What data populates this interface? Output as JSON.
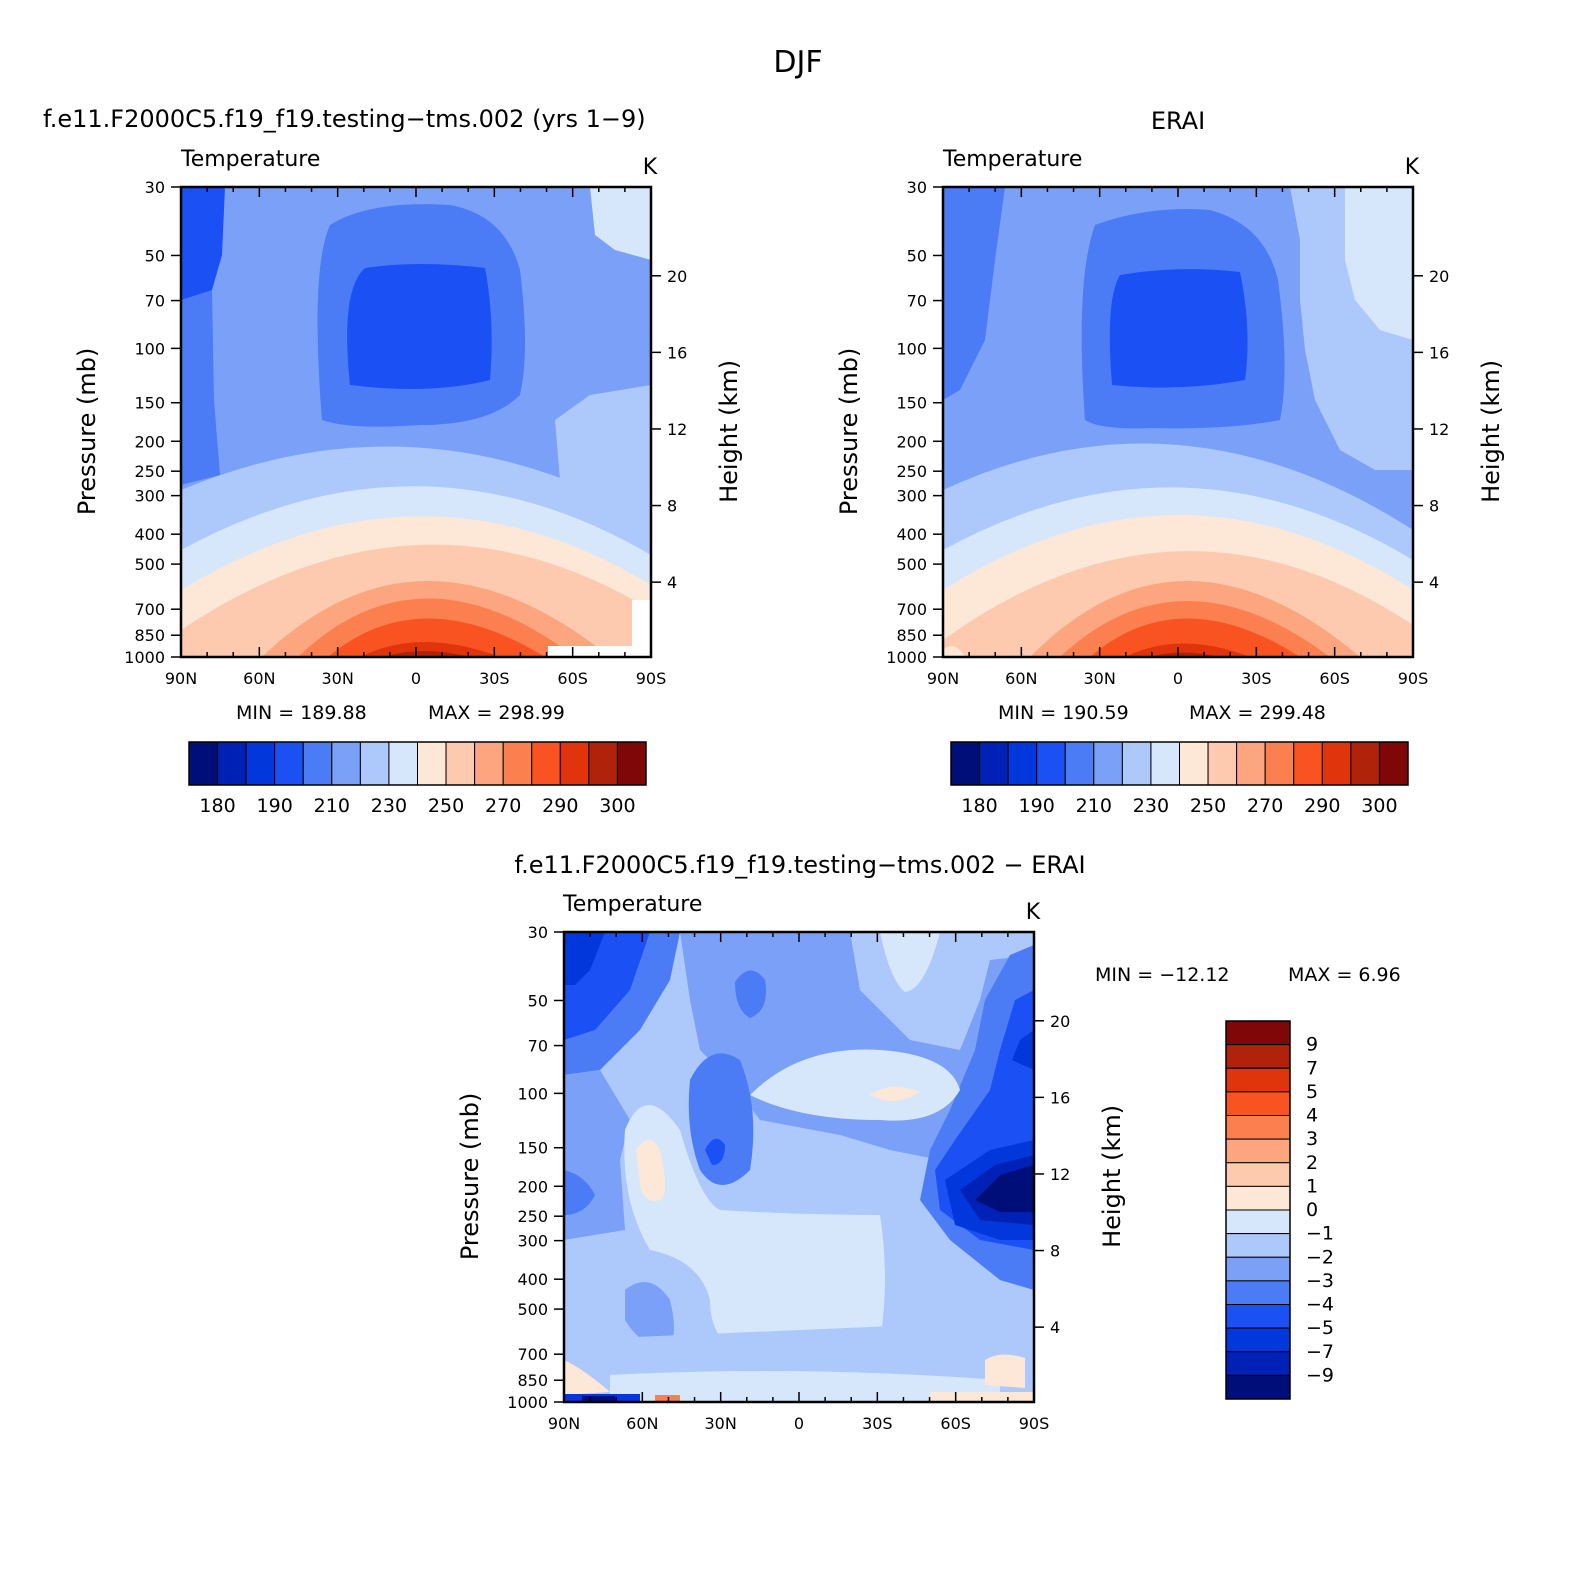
{
  "figure": {
    "title": "DJF"
  },
  "chart_data": [
    {
      "type": "heatmap",
      "title": "f.e11.F2000C5.f19_f19.testing−tms.002 (yrs 1−9)",
      "left_label": "Temperature",
      "units": "K",
      "x_ticks": [
        "90N",
        "60N",
        "30N",
        "0",
        "30S",
        "60S",
        "90S"
      ],
      "y_ticks": [
        "30",
        "50",
        "70",
        "100",
        "150",
        "200",
        "250",
        "300",
        "400",
        "500",
        "700",
        "850",
        "1000"
      ],
      "y2_ticks": [
        "20",
        "16",
        "12",
        "8",
        "4"
      ],
      "ylabel": "Pressure (mb)",
      "y2label": "Height (km)",
      "stats": {
        "min_label": "MIN = 189.88",
        "max_label": "MAX = 298.99",
        "min": 189.88,
        "max": 298.99
      },
      "colorbar_levels": [
        "180",
        "190",
        "210",
        "230",
        "250",
        "270",
        "290",
        "300"
      ],
      "colors": [
        "#000e7a",
        "#0021b5",
        "#0237dc",
        "#1b50f4",
        "#4b7cf6",
        "#7ba0f7",
        "#adc8fb",
        "#d6e7fc",
        "#fde7d6",
        "#fdcab0",
        "#fca57f",
        "#fb7f4f",
        "#f95321",
        "#e0340c",
        "#b0220a",
        "#800707"
      ]
    },
    {
      "type": "heatmap",
      "title": "ERAI",
      "left_label": "Temperature",
      "units": "K",
      "x_ticks": [
        "90N",
        "60N",
        "30N",
        "0",
        "30S",
        "60S",
        "90S"
      ],
      "y_ticks": [
        "30",
        "50",
        "70",
        "100",
        "150",
        "200",
        "250",
        "300",
        "400",
        "500",
        "700",
        "850",
        "1000"
      ],
      "y2_ticks": [
        "20",
        "16",
        "12",
        "8",
        "4"
      ],
      "ylabel": "Pressure (mb)",
      "y2label": "Height (km)",
      "stats": {
        "min_label": "MIN = 190.59",
        "max_label": "MAX = 299.48",
        "min": 190.59,
        "max": 299.48
      },
      "colorbar_levels": [
        "180",
        "190",
        "210",
        "230",
        "250",
        "270",
        "290",
        "300"
      ],
      "colors": [
        "#000e7a",
        "#0021b5",
        "#0237dc",
        "#1b50f4",
        "#4b7cf6",
        "#7ba0f7",
        "#adc8fb",
        "#d6e7fc",
        "#fde7d6",
        "#fdcab0",
        "#fca57f",
        "#fb7f4f",
        "#f95321",
        "#e0340c",
        "#b0220a",
        "#800707"
      ]
    },
    {
      "type": "heatmap",
      "title": "f.e11.F2000C5.f19_f19.testing−tms.002 − ERAI",
      "left_label": "Temperature",
      "units": "K",
      "x_ticks": [
        "90N",
        "60N",
        "30N",
        "0",
        "30S",
        "60S",
        "90S"
      ],
      "y_ticks": [
        "30",
        "50",
        "70",
        "100",
        "150",
        "200",
        "250",
        "300",
        "400",
        "500",
        "700",
        "850",
        "1000"
      ],
      "y2_ticks": [
        "20",
        "16",
        "12",
        "8",
        "4"
      ],
      "ylabel": "Pressure (mb)",
      "y2label": "Height (km)",
      "stats": {
        "min_label": "MIN = −12.12",
        "max_label": "MAX =    6.96",
        "min": -12.12,
        "max": 6.96
      },
      "colorbar_levels": [
        "9",
        "7",
        "5",
        "4",
        "3",
        "2",
        "1",
        "0",
        "−1",
        "−2",
        "−3",
        "−4",
        "−5",
        "−7",
        "−9"
      ],
      "colors": [
        "#800707",
        "#b0220a",
        "#e0340c",
        "#f95321",
        "#fb7f4f",
        "#fca57f",
        "#fdcab0",
        "#fde7d6",
        "#d6e7fc",
        "#adc8fb",
        "#7ba0f7",
        "#4b7cf6",
        "#1b50f4",
        "#0237dc",
        "#0021b5",
        "#000e7a"
      ]
    }
  ]
}
